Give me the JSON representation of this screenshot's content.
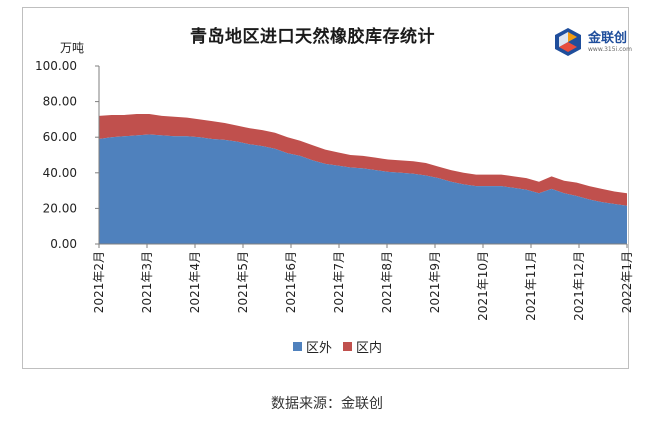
{
  "chart_data": {
    "type": "area",
    "title": "青岛地区进口天然橡胶库存统计",
    "ylabel": "万吨",
    "ylim": [
      0,
      100
    ],
    "yticks": [
      "0.00",
      "20.00",
      "40.00",
      "60.00",
      "80.00",
      "100.00"
    ],
    "xticks": [
      "2021年2月",
      "2021年3月",
      "2021年4月",
      "2021年5月",
      "2021年6月",
      "2021年7月",
      "2021年8月",
      "2021年9月",
      "2021年10月",
      "2021年11月",
      "2021年12月",
      "2022年1月"
    ],
    "stacked": true,
    "series": [
      {
        "name": "区外",
        "color": "#4f81bd",
        "values": [
          59,
          60,
          60.5,
          61,
          61.5,
          61,
          60.5,
          60.5,
          60,
          59,
          58.5,
          57.5,
          56,
          55,
          53.5,
          51,
          49.5,
          47,
          45,
          44,
          43,
          42.5,
          41.5,
          40.5,
          40,
          39.5,
          38.5,
          37,
          35,
          33.5,
          32.5,
          32.5,
          32.5,
          31.5,
          30.5,
          28.5,
          31,
          28.5,
          27,
          25,
          23.5,
          22.5,
          21.5
        ]
      },
      {
        "name": "区内",
        "color": "#c0504d",
        "values": [
          13,
          12.5,
          12,
          12,
          11.5,
          11,
          11,
          10.5,
          10,
          10,
          9.5,
          9,
          9,
          9,
          9,
          9,
          8.5,
          8.5,
          8,
          7.5,
          7,
          7,
          7,
          7,
          7,
          7,
          7,
          6.5,
          6.5,
          6.5,
          6.5,
          6.5,
          6.5,
          6.5,
          6.5,
          6.5,
          7,
          7,
          7.5,
          7.5,
          7.5,
          7,
          7
        ]
      }
    ],
    "legend_position": "bottom",
    "grid": false
  },
  "logo": {
    "text": "金联创",
    "url": "www.315i.com"
  },
  "source": "数据来源：金联创"
}
